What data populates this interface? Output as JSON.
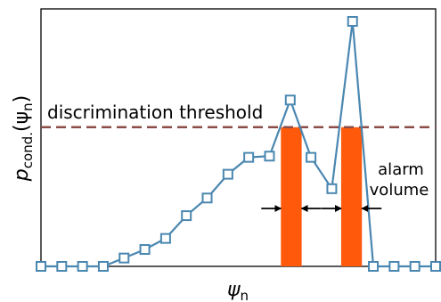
{
  "chart_data": {
    "type": "line",
    "xlabel_base": "ψ",
    "xlabel_sub": "n",
    "ylabel_base": "p",
    "ylabel_sub": "cond.",
    "ylabel_arg_open": "(ψ",
    "ylabel_arg_sub": "n",
    "ylabel_arg_close": ")",
    "xticks": false,
    "yticks": false,
    "xlim": [
      0,
      19
    ],
    "ylim": [
      0,
      1.0
    ],
    "series": [
      {
        "color": "#4a87b0",
        "marker": "square-open",
        "x": [
          0,
          1,
          2,
          3,
          4,
          5,
          6,
          7,
          8,
          9,
          10,
          11,
          12,
          13,
          14,
          15,
          16,
          17,
          18,
          19
        ],
        "y": [
          0.0,
          0.0,
          0.0,
          0.0,
          0.034,
          0.069,
          0.114,
          0.207,
          0.279,
          0.376,
          0.445,
          0.45,
          0.679,
          0.445,
          0.317,
          1.0,
          0.0,
          0.0,
          0.0,
          0.0
        ]
      }
    ],
    "threshold": {
      "value": 0.568,
      "label": "discrimination threshold",
      "color": "#8b4c47"
    },
    "alarm_bars": {
      "color": "#ff5a0c",
      "ranges": [
        [
          11.55,
          12.55
        ],
        [
          14.45,
          15.45
        ]
      ],
      "height": 0.568
    },
    "annotation": {
      "line1": "alarm",
      "line2": "volume"
    }
  }
}
